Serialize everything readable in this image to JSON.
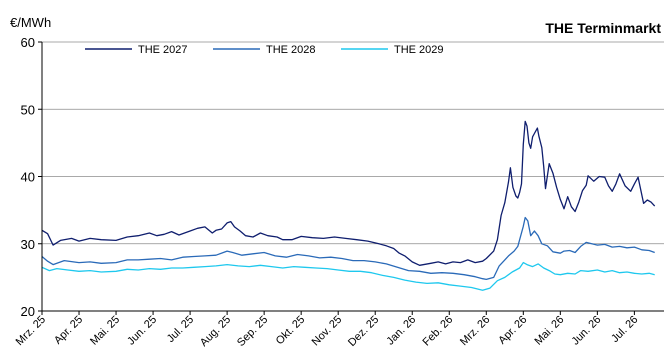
{
  "chart_data": {
    "type": "line",
    "title": "THE Terminmarkt",
    "ylabel": "€/MWh",
    "xlabel": "",
    "ylim": [
      20,
      60
    ],
    "yticks": [
      20,
      30,
      40,
      50,
      60
    ],
    "grid": "horizontal",
    "legend_position": "top",
    "x_tick_labels": [
      "Mrz. 25",
      "Apr. 25",
      "Mai. 25",
      "Jun. 25",
      "Jul. 25",
      "Aug. 25",
      "Sep. 25",
      "Okt. 25",
      "Nov. 25",
      "Dez. 25",
      "Jan. 26",
      "Feb. 26",
      "Mrz. 26",
      "Apr. 26",
      "Mai. 26",
      "Jun. 26",
      "Jul. 26"
    ],
    "x_unit": "months since Mrz. 25",
    "series": [
      {
        "name": "THE 2027",
        "color": "#0f1e6e",
        "points": [
          [
            0,
            32.0
          ],
          [
            0.15,
            31.5
          ],
          [
            0.3,
            29.8
          ],
          [
            0.5,
            30.5
          ],
          [
            0.8,
            30.8
          ],
          [
            1.0,
            30.4
          ],
          [
            1.3,
            30.8
          ],
          [
            1.6,
            30.6
          ],
          [
            2.0,
            30.5
          ],
          [
            2.3,
            31.0
          ],
          [
            2.6,
            31.2
          ],
          [
            2.9,
            31.6
          ],
          [
            3.1,
            31.2
          ],
          [
            3.3,
            31.4
          ],
          [
            3.5,
            31.8
          ],
          [
            3.7,
            31.3
          ],
          [
            4.0,
            31.9
          ],
          [
            4.2,
            32.3
          ],
          [
            4.4,
            32.5
          ],
          [
            4.6,
            31.6
          ],
          [
            4.7,
            32.0
          ],
          [
            4.85,
            32.2
          ],
          [
            5.0,
            33.1
          ],
          [
            5.1,
            33.3
          ],
          [
            5.2,
            32.5
          ],
          [
            5.35,
            31.9
          ],
          [
            5.5,
            31.2
          ],
          [
            5.7,
            31.0
          ],
          [
            5.9,
            31.6
          ],
          [
            6.1,
            31.2
          ],
          [
            6.35,
            31.0
          ],
          [
            6.5,
            30.6
          ],
          [
            6.75,
            30.6
          ],
          [
            7.0,
            31.1
          ],
          [
            7.3,
            30.9
          ],
          [
            7.6,
            30.8
          ],
          [
            7.9,
            31.0
          ],
          [
            8.2,
            30.8
          ],
          [
            8.5,
            30.6
          ],
          [
            8.8,
            30.4
          ],
          [
            9.1,
            30.0
          ],
          [
            9.3,
            29.7
          ],
          [
            9.5,
            29.3
          ],
          [
            9.65,
            28.6
          ],
          [
            9.8,
            28.2
          ],
          [
            10.0,
            27.3
          ],
          [
            10.2,
            26.8
          ],
          [
            10.5,
            27.1
          ],
          [
            10.7,
            27.3
          ],
          [
            10.9,
            27.0
          ],
          [
            11.1,
            27.3
          ],
          [
            11.3,
            27.2
          ],
          [
            11.5,
            27.6
          ],
          [
            11.7,
            27.2
          ],
          [
            11.9,
            27.4
          ],
          [
            12.0,
            27.8
          ],
          [
            12.2,
            28.9
          ],
          [
            12.3,
            30.6
          ],
          [
            12.4,
            34.2
          ],
          [
            12.5,
            36.1
          ],
          [
            12.6,
            39.2
          ],
          [
            12.65,
            41.3
          ],
          [
            12.72,
            38.4
          ],
          [
            12.8,
            37.1
          ],
          [
            12.85,
            36.8
          ],
          [
            12.9,
            37.6
          ],
          [
            12.95,
            38.9
          ],
          [
            13.0,
            44.8
          ],
          [
            13.05,
            48.2
          ],
          [
            13.1,
            47.5
          ],
          [
            13.15,
            45.0
          ],
          [
            13.2,
            44.2
          ],
          [
            13.25,
            45.9
          ],
          [
            13.3,
            46.4
          ],
          [
            13.38,
            47.2
          ],
          [
            13.42,
            46.0
          ],
          [
            13.5,
            44.3
          ],
          [
            13.55,
            41.5
          ],
          [
            13.6,
            38.2
          ],
          [
            13.7,
            41.9
          ],
          [
            13.8,
            40.5
          ],
          [
            13.9,
            38.4
          ],
          [
            14.0,
            36.6
          ],
          [
            14.1,
            35.2
          ],
          [
            14.2,
            37.0
          ],
          [
            14.3,
            35.5
          ],
          [
            14.4,
            34.8
          ],
          [
            14.5,
            36.2
          ],
          [
            14.6,
            37.9
          ],
          [
            14.7,
            38.7
          ],
          [
            14.75,
            40.1
          ],
          [
            14.9,
            39.3
          ],
          [
            15.05,
            40.0
          ],
          [
            15.2,
            39.9
          ],
          [
            15.3,
            38.6
          ],
          [
            15.4,
            37.8
          ],
          [
            15.5,
            38.9
          ],
          [
            15.6,
            40.4
          ],
          [
            15.75,
            38.6
          ],
          [
            15.9,
            37.8
          ],
          [
            16.0,
            38.9
          ],
          [
            16.1,
            39.9
          ],
          [
            16.25,
            36.0
          ],
          [
            16.35,
            36.5
          ],
          [
            16.45,
            36.2
          ],
          [
            16.55,
            35.6
          ]
        ]
      },
      {
        "name": "THE 2028",
        "color": "#2a6ab8",
        "points": [
          [
            0,
            28.1
          ],
          [
            0.15,
            27.4
          ],
          [
            0.3,
            26.9
          ],
          [
            0.6,
            27.5
          ],
          [
            1.0,
            27.2
          ],
          [
            1.3,
            27.3
          ],
          [
            1.6,
            27.1
          ],
          [
            2.0,
            27.2
          ],
          [
            2.3,
            27.6
          ],
          [
            2.6,
            27.6
          ],
          [
            2.9,
            27.7
          ],
          [
            3.2,
            27.8
          ],
          [
            3.5,
            27.6
          ],
          [
            3.8,
            28.0
          ],
          [
            4.1,
            28.1
          ],
          [
            4.4,
            28.2
          ],
          [
            4.7,
            28.3
          ],
          [
            5.0,
            28.9
          ],
          [
            5.15,
            28.7
          ],
          [
            5.4,
            28.3
          ],
          [
            5.7,
            28.5
          ],
          [
            6.0,
            28.7
          ],
          [
            6.3,
            28.2
          ],
          [
            6.6,
            28.0
          ],
          [
            6.9,
            28.4
          ],
          [
            7.2,
            28.2
          ],
          [
            7.5,
            27.9
          ],
          [
            7.8,
            28.0
          ],
          [
            8.1,
            27.8
          ],
          [
            8.4,
            27.5
          ],
          [
            8.7,
            27.5
          ],
          [
            9.0,
            27.3
          ],
          [
            9.3,
            27.0
          ],
          [
            9.6,
            26.5
          ],
          [
            9.9,
            26.0
          ],
          [
            10.2,
            25.9
          ],
          [
            10.5,
            25.6
          ],
          [
            10.8,
            25.7
          ],
          [
            11.1,
            25.6
          ],
          [
            11.4,
            25.4
          ],
          [
            11.7,
            25.1
          ],
          [
            11.9,
            24.8
          ],
          [
            12.0,
            24.7
          ],
          [
            12.2,
            25.0
          ],
          [
            12.35,
            26.7
          ],
          [
            12.5,
            27.6
          ],
          [
            12.6,
            28.2
          ],
          [
            12.75,
            28.9
          ],
          [
            12.85,
            29.6
          ],
          [
            13.0,
            32.6
          ],
          [
            13.05,
            33.9
          ],
          [
            13.12,
            33.4
          ],
          [
            13.2,
            31.2
          ],
          [
            13.3,
            31.9
          ],
          [
            13.4,
            31.2
          ],
          [
            13.5,
            30.0
          ],
          [
            13.65,
            29.7
          ],
          [
            13.8,
            28.8
          ],
          [
            14.0,
            28.6
          ],
          [
            14.1,
            28.9
          ],
          [
            14.25,
            29.0
          ],
          [
            14.4,
            28.7
          ],
          [
            14.55,
            29.6
          ],
          [
            14.7,
            30.2
          ],
          [
            14.85,
            30.0
          ],
          [
            15.0,
            29.8
          ],
          [
            15.2,
            29.9
          ],
          [
            15.4,
            29.5
          ],
          [
            15.6,
            29.6
          ],
          [
            15.8,
            29.4
          ],
          [
            16.0,
            29.5
          ],
          [
            16.2,
            29.1
          ],
          [
            16.4,
            29.0
          ],
          [
            16.55,
            28.7
          ]
        ]
      },
      {
        "name": "THE 2029",
        "color": "#1ec8ee",
        "points": [
          [
            0,
            26.5
          ],
          [
            0.2,
            26.0
          ],
          [
            0.4,
            26.3
          ],
          [
            0.7,
            26.1
          ],
          [
            1.0,
            25.9
          ],
          [
            1.3,
            26.0
          ],
          [
            1.6,
            25.8
          ],
          [
            2.0,
            25.9
          ],
          [
            2.3,
            26.2
          ],
          [
            2.6,
            26.1
          ],
          [
            2.9,
            26.3
          ],
          [
            3.2,
            26.2
          ],
          [
            3.5,
            26.4
          ],
          [
            3.8,
            26.4
          ],
          [
            4.1,
            26.5
          ],
          [
            4.4,
            26.6
          ],
          [
            4.7,
            26.7
          ],
          [
            5.0,
            26.9
          ],
          [
            5.3,
            26.7
          ],
          [
            5.6,
            26.6
          ],
          [
            5.9,
            26.8
          ],
          [
            6.2,
            26.6
          ],
          [
            6.5,
            26.4
          ],
          [
            6.8,
            26.6
          ],
          [
            7.1,
            26.5
          ],
          [
            7.4,
            26.4
          ],
          [
            7.7,
            26.3
          ],
          [
            8.0,
            26.1
          ],
          [
            8.3,
            25.9
          ],
          [
            8.6,
            25.9
          ],
          [
            8.9,
            25.7
          ],
          [
            9.2,
            25.3
          ],
          [
            9.5,
            25.0
          ],
          [
            9.8,
            24.6
          ],
          [
            10.1,
            24.3
          ],
          [
            10.4,
            24.1
          ],
          [
            10.7,
            24.2
          ],
          [
            11.0,
            23.9
          ],
          [
            11.3,
            23.7
          ],
          [
            11.6,
            23.5
          ],
          [
            11.9,
            23.1
          ],
          [
            12.1,
            23.4
          ],
          [
            12.3,
            24.5
          ],
          [
            12.5,
            25.0
          ],
          [
            12.7,
            25.8
          ],
          [
            12.9,
            26.4
          ],
          [
            13.0,
            27.2
          ],
          [
            13.1,
            26.9
          ],
          [
            13.25,
            26.6
          ],
          [
            13.4,
            27.0
          ],
          [
            13.55,
            26.4
          ],
          [
            13.7,
            26.0
          ],
          [
            13.85,
            25.5
          ],
          [
            14.0,
            25.4
          ],
          [
            14.2,
            25.6
          ],
          [
            14.4,
            25.5
          ],
          [
            14.55,
            26.0
          ],
          [
            14.75,
            25.9
          ],
          [
            15.0,
            26.1
          ],
          [
            15.2,
            25.8
          ],
          [
            15.4,
            26.0
          ],
          [
            15.6,
            25.7
          ],
          [
            15.8,
            25.8
          ],
          [
            16.0,
            25.6
          ],
          [
            16.2,
            25.5
          ],
          [
            16.4,
            25.6
          ],
          [
            16.55,
            25.4
          ]
        ]
      }
    ]
  }
}
